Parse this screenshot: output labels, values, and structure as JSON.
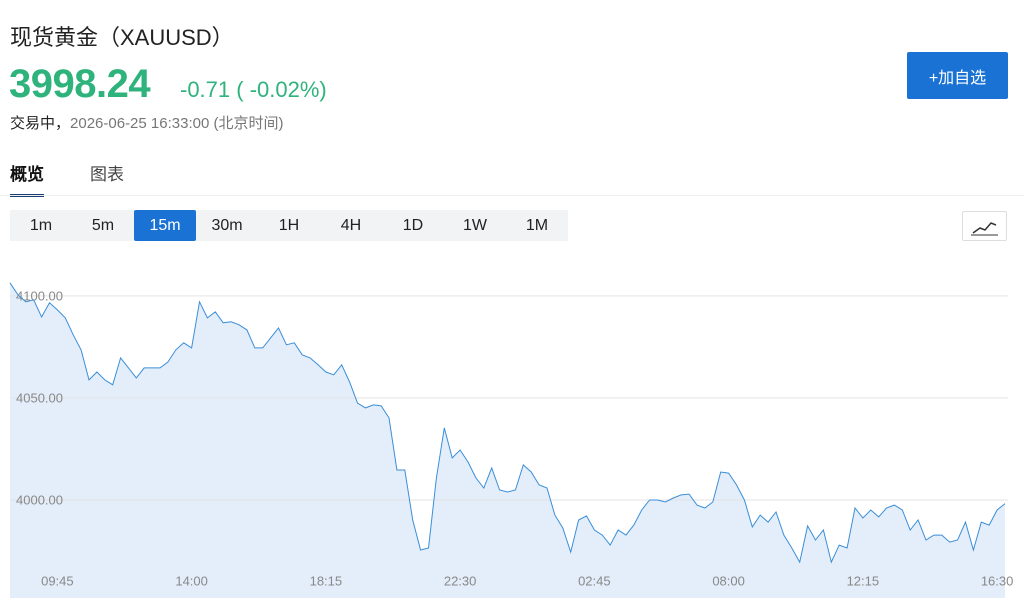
{
  "header": {
    "title": "现货黄金（XAUUSD）",
    "price": "3998.24",
    "change": "-0.71 ( -0.02%)",
    "status": "交易中，",
    "timestamp": "2026-06-25 16:33:00 (北京时间)",
    "button": "+加自选"
  },
  "tabs": [
    "概览",
    "图表"
  ],
  "intervals": [
    "1m",
    "5m",
    "15m",
    "30m",
    "1H",
    "4H",
    "1D",
    "1W",
    "1M"
  ],
  "active_interval": "15m",
  "chart_data": {
    "type": "area",
    "color": "#3a8ed8",
    "fill": "#e4eefa",
    "grid": true,
    "categories": [
      null,
      null,
      null,
      null,
      null,
      null,
      "09:45",
      null,
      null,
      null,
      null,
      null,
      null,
      null,
      null,
      null,
      null,
      null,
      null,
      null,
      null,
      null,
      null,
      "14:00",
      null,
      null,
      null,
      null,
      null,
      null,
      null,
      null,
      null,
      null,
      null,
      null,
      null,
      null,
      null,
      null,
      "18:15",
      null,
      null,
      null,
      null,
      null,
      null,
      null,
      null,
      null,
      null,
      null,
      null,
      null,
      null,
      null,
      null,
      "22:30",
      null,
      null,
      null,
      null,
      null,
      null,
      null,
      null,
      null,
      null,
      null,
      null,
      null,
      null,
      null,
      null,
      "02:45",
      null,
      null,
      null,
      null,
      null,
      null,
      null,
      null,
      null,
      null,
      null,
      null,
      null,
      null,
      null,
      null,
      "08:00",
      null,
      null,
      null,
      null,
      null,
      null,
      null,
      null,
      null,
      null,
      null,
      null,
      null,
      null,
      null,
      null,
      "12:15",
      null,
      null,
      null,
      null,
      null,
      null,
      null,
      null,
      null,
      null,
      null,
      null,
      null,
      null,
      null,
      null,
      "16:30",
      null
    ],
    "values": [
      4106.4,
      4100.5,
      4097.1,
      4098.0,
      4089.7,
      4096.6,
      4093.1,
      4089.2,
      4080.9,
      4073.5,
      4058.8,
      4062.7,
      4058.8,
      4056.4,
      4069.6,
      4064.7,
      4059.8,
      4064.7,
      4064.7,
      4064.7,
      4067.6,
      4073.5,
      4077.0,
      4074.5,
      4097.1,
      4089.2,
      4092.2,
      4086.8,
      4087.3,
      4085.8,
      4083.3,
      4074.5,
      4074.5,
      4079.4,
      4084.3,
      4076.0,
      4077.0,
      4071.1,
      4069.6,
      4066.2,
      4062.7,
      4061.3,
      4066.2,
      4057.8,
      4047.5,
      4045.1,
      4046.6,
      4046.1,
      4040.2,
      4014.7,
      4014.7,
      3990.2,
      3975.5,
      3976.5,
      4010.8,
      4035.3,
      4020.6,
      4024.5,
      4018.6,
      4010.8,
      4005.9,
      4015.7,
      4004.9,
      4003.9,
      4004.9,
      4017.2,
      4013.7,
      4007.4,
      4005.9,
      3992.6,
      3986.3,
      3974.5,
      3990.2,
      3992.2,
      3985.3,
      3982.8,
      3977.9,
      3985.3,
      3982.8,
      3987.7,
      3995.1,
      4000.0,
      4000.0,
      3999.0,
      4001.0,
      4002.5,
      4002.9,
      3997.5,
      3996.1,
      3999.0,
      4013.7,
      4013.2,
      4007.4,
      4000.0,
      3986.8,
      3992.6,
      3989.2,
      3994.1,
      3982.8,
      3976.5,
      3969.6,
      3987.3,
      3980.4,
      3985.3,
      3969.6,
      3977.9,
      3976.5,
      3996.1,
      3991.2,
      3995.1,
      3991.7,
      3996.1,
      3997.5,
      3995.1,
      3985.3,
      3990.2,
      3980.4,
      3982.8,
      3982.8,
      3979.4,
      3980.4,
      3989.2,
      3975.5,
      3989.2,
      3987.7,
      3995.1,
      3998.24
    ],
    "ylim": [
      3952,
      4120
    ],
    "yticks": [
      {
        "value": 4000,
        "label": "4000.00"
      },
      {
        "value": 4050,
        "label": "4050.00"
      },
      {
        "value": 4100,
        "label": "4100.00"
      }
    ]
  }
}
